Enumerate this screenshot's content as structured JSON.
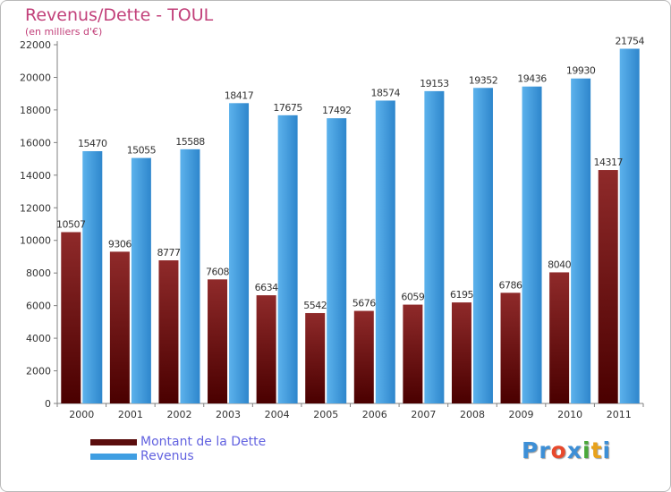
{
  "title": "Revenus/Dette - TOUL",
  "subtitle": "(en milliers d'€)",
  "logo": {
    "text": "Proxiti",
    "letters": [
      {
        "ch": "P",
        "color": "#3d8fd6"
      },
      {
        "ch": "r",
        "color": "#3d8fd6"
      },
      {
        "ch": "o",
        "color": "#e8492c"
      },
      {
        "ch": "x",
        "color": "#3d8fd6"
      },
      {
        "ch": "i",
        "color": "#4aa83a"
      },
      {
        "ch": "t",
        "color": "#e8a21b"
      },
      {
        "ch": "i",
        "color": "#3d8fd6"
      }
    ]
  },
  "colors": {
    "dette": "#8b1e1e",
    "revenus": "#3f9ee2",
    "axis": "#808080",
    "label": "#555555"
  },
  "chart_data": {
    "type": "bar",
    "categories": [
      "2000",
      "2001",
      "2002",
      "2003",
      "2004",
      "2005",
      "2006",
      "2007",
      "2008",
      "2009",
      "2010",
      "2011"
    ],
    "series": [
      {
        "name": "Montant de la Dette",
        "values": [
          10507,
          9306,
          8777,
          7608,
          6634,
          5542,
          5676,
          6059,
          6195,
          6786,
          8040,
          14317
        ],
        "labels": [
          "10507",
          "9306",
          "8777",
          "7608",
          "6634",
          "5542",
          "5676",
          "6059",
          "6195",
          "6786",
          "8040",
          "14317"
        ]
      },
      {
        "name": "Revenus",
        "values": [
          15470,
          15055,
          15588,
          18417,
          17675,
          17492,
          18574,
          19153,
          19352,
          19436,
          19930,
          21754
        ],
        "labels": [
          "15470",
          "15055",
          "15588",
          "18417",
          "17675",
          "17492",
          "18574",
          "19153",
          "19352",
          "19436",
          "19930",
          "21754"
        ]
      }
    ],
    "yticks": [
      0,
      2000,
      4000,
      6000,
      8000,
      10000,
      12000,
      14000,
      16000,
      18000,
      20000,
      22000
    ],
    "ylim": [
      0,
      22000
    ],
    "legend_position": "bottom-left",
    "grid": false
  }
}
